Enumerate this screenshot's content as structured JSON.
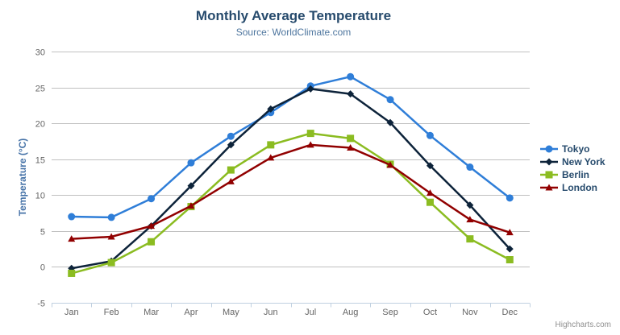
{
  "title": "Monthly Average Temperature",
  "subtitle": "Source: WorldClimate.com",
  "credit": "Highcharts.com",
  "export_menu": {
    "icon": "hamburger-icon"
  },
  "chart_data": {
    "type": "line",
    "title": "Monthly Average Temperature",
    "subtitle": "Source: WorldClimate.com",
    "categories": [
      "Jan",
      "Feb",
      "Mar",
      "Apr",
      "May",
      "Jun",
      "Jul",
      "Aug",
      "Sep",
      "Oct",
      "Nov",
      "Dec"
    ],
    "series": [
      {
        "name": "Tokyo",
        "color": "#2f7ed8",
        "marker": "circle",
        "values": [
          7.0,
          6.9,
          9.5,
          14.5,
          18.2,
          21.5,
          25.2,
          26.5,
          23.3,
          18.3,
          13.9,
          9.6
        ]
      },
      {
        "name": "New York",
        "color": "#0d233a",
        "marker": "diamond",
        "values": [
          -0.2,
          0.8,
          5.7,
          11.3,
          17.0,
          22.0,
          24.8,
          24.1,
          20.1,
          14.1,
          8.6,
          2.5
        ]
      },
      {
        "name": "Berlin",
        "color": "#8bbc21",
        "marker": "square",
        "values": [
          -0.9,
          0.6,
          3.5,
          8.4,
          13.5,
          17.0,
          18.6,
          17.9,
          14.3,
          9.0,
          3.9,
          1.0
        ]
      },
      {
        "name": "London",
        "color": "#910000",
        "marker": "triangle",
        "values": [
          3.9,
          4.2,
          5.7,
          8.5,
          11.9,
          15.2,
          17.0,
          16.6,
          14.2,
          10.3,
          6.6,
          4.8
        ]
      }
    ],
    "xlabel": "",
    "ylabel": "Temperature (°C)",
    "ylim": [
      -5,
      30
    ],
    "ytick_step": 5,
    "yticks": [
      -5,
      0,
      5,
      10,
      15,
      20,
      25,
      30
    ],
    "grid": true,
    "legend_position": "right",
    "colors": {
      "title": "#274b6d",
      "subtitle": "#4d759e",
      "grid_line": "#c0c0c0",
      "axis_line": "#c0d0e0",
      "tick_label": "#666666",
      "axis_title": "#4572a7",
      "legend_text": "#274b6d",
      "credit_text": "#909090",
      "export_icon": "#666666"
    }
  }
}
